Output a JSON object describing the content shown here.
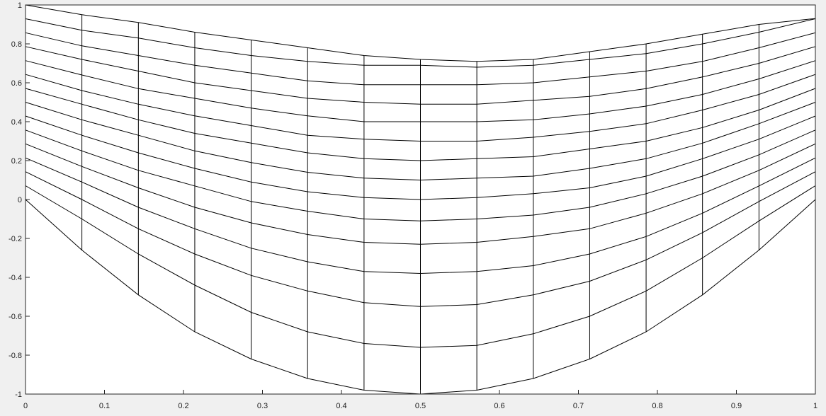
{
  "chart_data": {
    "type": "line",
    "title": "",
    "xlabel": "",
    "ylabel": "",
    "xlim": [
      0,
      1
    ],
    "ylim": [
      -1,
      1
    ],
    "x_ticks": [
      "0",
      "0.1",
      "0.2",
      "0.3",
      "0.4",
      "0.5",
      "0.6",
      "0.7",
      "0.8",
      "0.9",
      "1"
    ],
    "y_ticks": [
      "-1",
      "-0.8",
      "-0.6",
      "-0.4",
      "-0.2",
      "0",
      "0.2",
      "0.4",
      "0.6",
      "0.8",
      "1"
    ],
    "grid": false,
    "x": [
      0,
      0.0714,
      0.1429,
      0.2143,
      0.2857,
      0.3571,
      0.4286,
      0.5,
      0.5714,
      0.6429,
      0.7143,
      0.7857,
      0.8571,
      0.9286,
      1
    ],
    "series": [
      {
        "values": [
          0,
          -0.26,
          -0.49,
          -0.68,
          -0.82,
          -0.92,
          -0.98,
          -1.0,
          -0.98,
          -0.92,
          -0.82,
          -0.68,
          -0.49,
          -0.26,
          0
        ]
      },
      {
        "values": [
          0.071,
          -0.1,
          -0.28,
          -0.44,
          -0.58,
          -0.68,
          -0.74,
          -0.76,
          -0.75,
          -0.69,
          -0.6,
          -0.47,
          -0.3,
          -0.11,
          0.071
        ]
      },
      {
        "values": [
          0.143,
          0.0,
          -0.15,
          -0.28,
          -0.39,
          -0.47,
          -0.53,
          -0.55,
          -0.54,
          -0.49,
          -0.42,
          -0.31,
          -0.17,
          -0.01,
          0.143
        ]
      },
      {
        "values": [
          0.214,
          0.09,
          -0.04,
          -0.15,
          -0.25,
          -0.32,
          -0.37,
          -0.38,
          -0.37,
          -0.34,
          -0.28,
          -0.19,
          -0.07,
          0.07,
          0.214
        ]
      },
      {
        "values": [
          0.286,
          0.17,
          0.06,
          -0.04,
          -0.12,
          -0.18,
          -0.22,
          -0.23,
          -0.22,
          -0.19,
          -0.15,
          -0.07,
          0.03,
          0.15,
          0.286
        ]
      },
      {
        "values": [
          0.357,
          0.25,
          0.15,
          0.07,
          -0.01,
          -0.06,
          -0.1,
          -0.11,
          -0.1,
          -0.08,
          -0.04,
          0.03,
          0.12,
          0.23,
          0.357
        ]
      },
      {
        "values": [
          0.429,
          0.33,
          0.24,
          0.16,
          0.09,
          0.04,
          0.01,
          0.0,
          0.01,
          0.03,
          0.06,
          0.12,
          0.21,
          0.31,
          0.429
        ]
      },
      {
        "values": [
          0.5,
          0.41,
          0.33,
          0.25,
          0.19,
          0.14,
          0.11,
          0.1,
          0.11,
          0.12,
          0.16,
          0.21,
          0.29,
          0.39,
          0.5
        ]
      },
      {
        "values": [
          0.571,
          0.49,
          0.41,
          0.34,
          0.29,
          0.24,
          0.21,
          0.2,
          0.21,
          0.22,
          0.26,
          0.3,
          0.37,
          0.46,
          0.571
        ]
      },
      {
        "values": [
          0.643,
          0.56,
          0.49,
          0.43,
          0.38,
          0.33,
          0.31,
          0.3,
          0.3,
          0.32,
          0.35,
          0.39,
          0.46,
          0.54,
          0.643
        ]
      },
      {
        "values": [
          0.714,
          0.64,
          0.57,
          0.52,
          0.47,
          0.43,
          0.4,
          0.4,
          0.4,
          0.41,
          0.44,
          0.48,
          0.54,
          0.62,
          0.714
        ]
      },
      {
        "values": [
          0.786,
          0.72,
          0.66,
          0.6,
          0.56,
          0.52,
          0.5,
          0.49,
          0.49,
          0.51,
          0.53,
          0.57,
          0.63,
          0.7,
          0.786
        ]
      },
      {
        "values": [
          0.857,
          0.79,
          0.74,
          0.69,
          0.65,
          0.61,
          0.59,
          0.59,
          0.59,
          0.6,
          0.63,
          0.66,
          0.71,
          0.78,
          0.857
        ]
      },
      {
        "values": [
          0.929,
          0.87,
          0.83,
          0.78,
          0.74,
          0.71,
          0.69,
          0.69,
          0.68,
          0.69,
          0.72,
          0.75,
          0.8,
          0.86,
          0.929
        ]
      },
      {
        "values": [
          1.0,
          0.95,
          0.91,
          0.86,
          0.82,
          0.78,
          0.74,
          0.72,
          0.71,
          0.72,
          0.76,
          0.8,
          0.85,
          0.9,
          0.93
        ]
      }
    ]
  }
}
